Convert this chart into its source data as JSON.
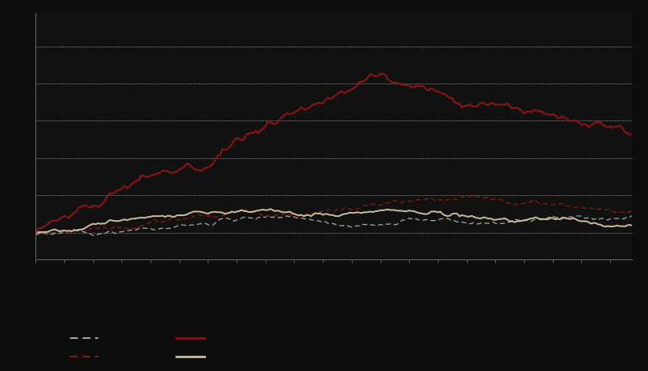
{
  "background_color": "#0d0d0d",
  "plot_bg_color": "#111111",
  "n_points": 250,
  "color_darkred_solid": "#8b1515",
  "color_cream_solid": "#c8bfa0",
  "color_darkred_dashed": "#8b1a1a",
  "color_gray_dashed": "#aaaaaa",
  "seed": 17
}
